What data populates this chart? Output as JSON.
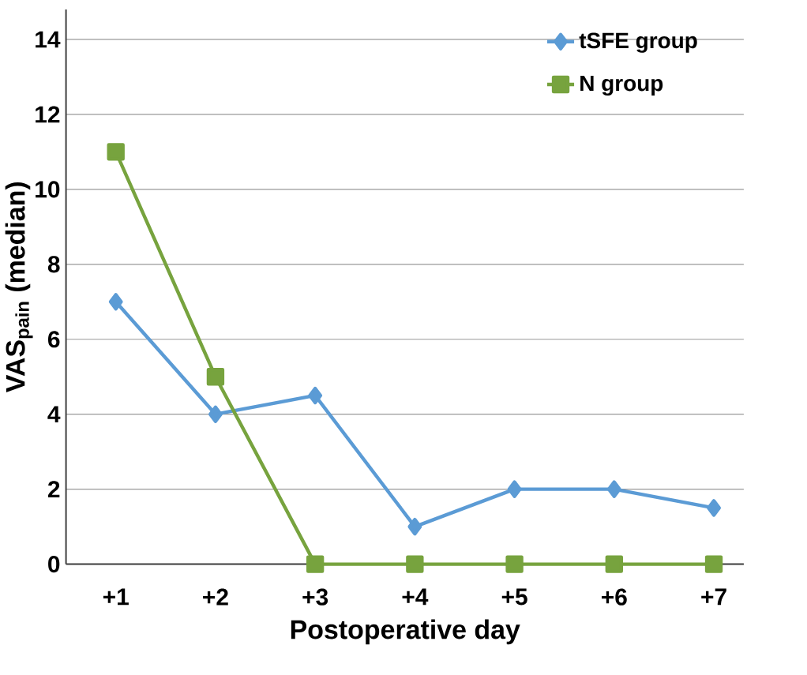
{
  "chart_data": {
    "type": "line",
    "xlabel": "Postoperative day",
    "ylabel": "VAS$_{pain}$ (median)",
    "categories": [
      "+1",
      "+2",
      "+3",
      "+4",
      "+5",
      "+6",
      "+7"
    ],
    "series": [
      {
        "name": "tSFE group",
        "color": "#5b9bd5",
        "marker": "diamond",
        "values": [
          7,
          4,
          4.5,
          1,
          2,
          2,
          1.5
        ]
      },
      {
        "name": "N group",
        "color": "#77a33e",
        "marker": "square",
        "values": [
          11,
          5,
          0,
          0,
          0,
          0,
          0
        ]
      }
    ],
    "ylim": [
      0,
      14.8
    ],
    "yticks": [
      0,
      2,
      4,
      6,
      8,
      10,
      12,
      14
    ],
    "grid": "y",
    "legend": "top right",
    "line_style": "solid"
  }
}
